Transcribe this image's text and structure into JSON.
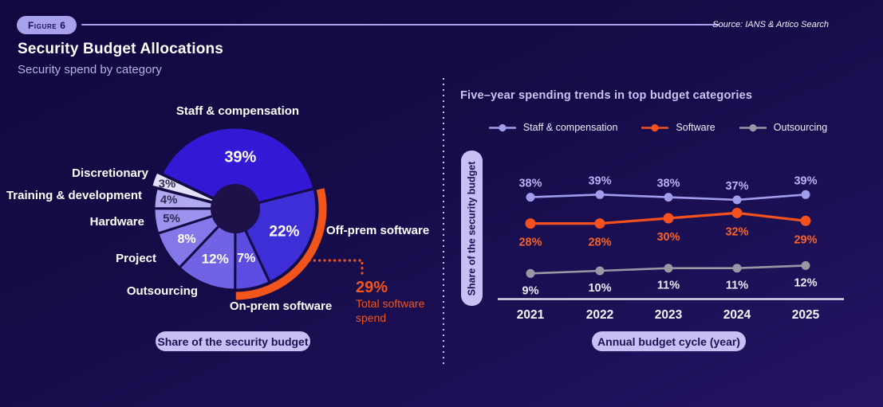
{
  "header": {
    "figure_label": "Figure 6",
    "source": "Source: IANS & Artico Search",
    "title": "Security Budget Allocations",
    "subtitle": "Security spend by category"
  },
  "pills": {
    "donut_caption": "Share of the security budget",
    "trend_y_axis": "Share of the security budget",
    "trend_x_axis": "Annual budget cycle (year)"
  },
  "colors": {
    "background_navy": "#150b47",
    "accent_lavender": "#a8a2ec",
    "pill_lavender": "#c6c0f5",
    "pill_text_navy": "#1d1155",
    "highlight_orange": "#f2551c",
    "white": "#ffffff"
  },
  "chart_data": [
    {
      "type": "pie",
      "title": "Security spend by category",
      "caption": "Share of the security budget",
      "unit": "%",
      "slices": [
        {
          "label": "Staff & compensation",
          "value": 39,
          "color": "#3318d6",
          "text_color": "#ffffff"
        },
        {
          "label": "Off-prem software",
          "value": 22,
          "color": "#3e2ed8",
          "text_color": "#ffffff"
        },
        {
          "label": "On-prem software",
          "value": 7,
          "color": "#5a4de0",
          "text_color": "#ffffff"
        },
        {
          "label": "Outsourcing",
          "value": 12,
          "color": "#7164e4",
          "text_color": "#ffffff"
        },
        {
          "label": "Project",
          "value": 8,
          "color": "#8477e8",
          "text_color": "#ffffff"
        },
        {
          "label": "Hardware",
          "value": 5,
          "color": "#9d92ee",
          "text_color": "#332d56"
        },
        {
          "label": "Training & development",
          "value": 4,
          "color": "#b2aaf1",
          "text_color": "#332d56"
        },
        {
          "label": "Discretionary",
          "value": 3,
          "color": "#e4e1fa",
          "text_color": "#332d56"
        }
      ],
      "highlight": {
        "value_label": "29%",
        "caption_lines": [
          "Total software",
          "spend"
        ],
        "color": "#f2551c"
      }
    },
    {
      "type": "line",
      "title": "Five–year spending trends in top budget categories",
      "x": [
        "2021",
        "2022",
        "2023",
        "2024",
        "2025"
      ],
      "xlabel": "Annual budget cycle (year)",
      "ylabel": "Share of the security budget",
      "unit": "%",
      "grid": false,
      "legend_position": "top",
      "series": [
        {
          "name": "Staff & compensation",
          "values": [
            38,
            39,
            38,
            37,
            39
          ],
          "color": "#a29cec",
          "label_color": "#b9b3f3"
        },
        {
          "name": "Software",
          "values": [
            28,
            28,
            30,
            32,
            29
          ],
          "color": "#f4511e",
          "label_color": "#f7622c"
        },
        {
          "name": "Outsourcing",
          "values": [
            9,
            10,
            11,
            11,
            12
          ],
          "color": "#9b98a6",
          "label_color": "#eceaf4"
        }
      ]
    }
  ]
}
